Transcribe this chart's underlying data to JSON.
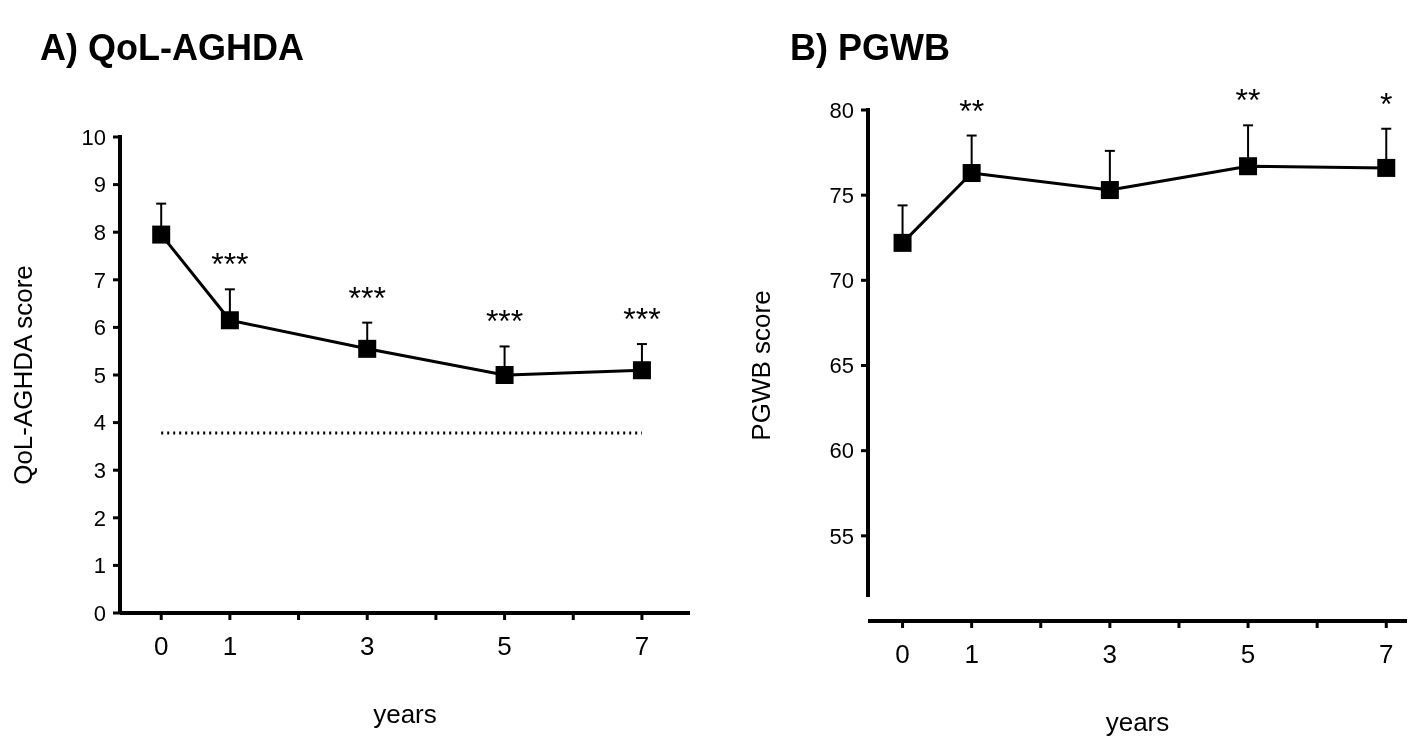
{
  "chart_data": [
    {
      "type": "line",
      "title": "A) QoL-AGHDA",
      "xlabel": "years",
      "ylabel": "QoL-AGHDA score",
      "x": [
        0,
        1,
        3,
        5,
        7
      ],
      "series": [
        {
          "color": "#000000",
          "values": [
            7.95,
            6.15,
            5.55,
            5.0,
            5.1
          ],
          "errors": [
            [
              7.95,
              8.6
            ],
            [
              6.15,
              6.8
            ],
            [
              5.55,
              6.1
            ],
            [
              5.0,
              5.6
            ],
            [
              5.1,
              5.65
            ]
          ]
        }
      ],
      "xlim": [
        -0.6,
        7.7
      ],
      "xticks": [
        0,
        1,
        {
          "value": 2,
          "label": null
        },
        3,
        {
          "value": 4,
          "label": null
        },
        5,
        {
          "value": 6,
          "label": null
        },
        7
      ],
      "ylim": [
        0,
        10
      ],
      "yticks": [
        0,
        1,
        2,
        3,
        4,
        5,
        6,
        7,
        8,
        9,
        10
      ],
      "marker": "square",
      "line_style": "solid",
      "grid": false,
      "ref_lines": [
        {
          "axis": "y",
          "value": 3.78,
          "line_style": "dotted",
          "color": "#000000"
        }
      ],
      "annotations": [
        "***",
        "***",
        "***",
        "***"
      ]
    },
    {
      "type": "line",
      "title": "B) PGWB",
      "xlabel": "years",
      "ylabel": "PGWB score",
      "x": [
        0,
        1,
        3,
        5,
        7
      ],
      "series": [
        {
          "color": "#000000",
          "values": [
            72.2,
            76.3,
            75.3,
            76.7,
            76.6
          ],
          "errors": [
            [
              72.2,
              74.4
            ],
            [
              76.3,
              78.5
            ],
            [
              75.3,
              77.6
            ],
            [
              76.7,
              79.1
            ],
            [
              76.6,
              78.9
            ]
          ]
        }
      ],
      "xlim": [
        -0.5,
        7.3
      ],
      "xticks": [
        0,
        1,
        {
          "value": 2,
          "label": null
        },
        3,
        {
          "value": 4,
          "label": null
        },
        5,
        {
          "value": 6,
          "label": null
        },
        7
      ],
      "ylim": [
        50,
        80
      ],
      "yticks": [
        55,
        60,
        65,
        70,
        75,
        80
      ],
      "marker": "square",
      "line_style": "solid",
      "grid": false,
      "annotations": [
        "**",
        "**",
        "*"
      ]
    }
  ]
}
